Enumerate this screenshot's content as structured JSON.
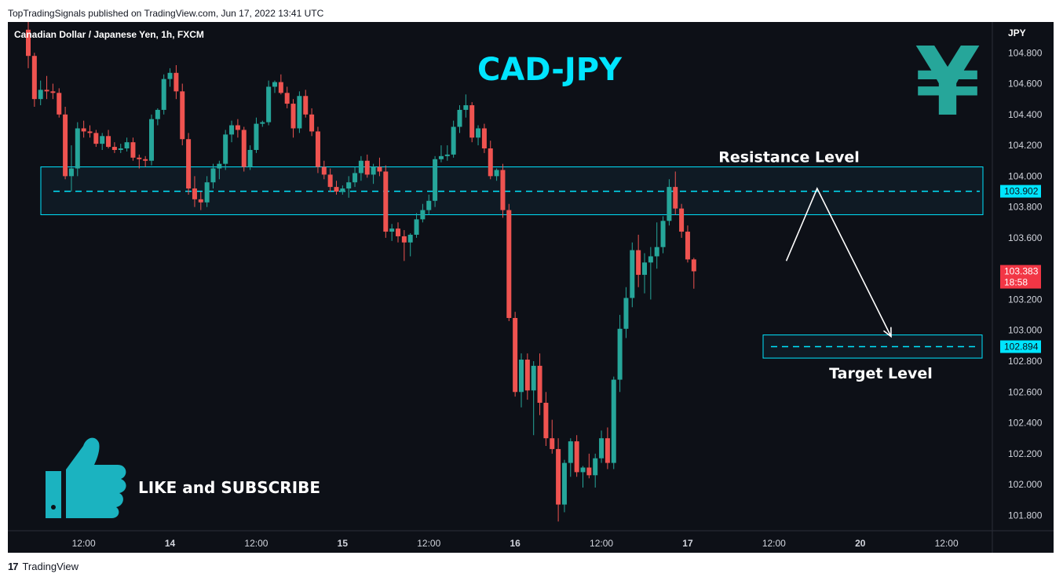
{
  "header": {
    "publish_info": "TopTradingSignals published on TradingView.com, Jun 17, 2022 13:41 UTC"
  },
  "footer": {
    "brand": "TradingView",
    "logo_glyph": "17"
  },
  "chart_data": {
    "type": "candlestick",
    "symbol_label": "Canadian Dollar / Japanese Yen, 1h, FXCM",
    "title": "CAD-JPY",
    "currency_label": "JPY",
    "currency_symbol": "¥",
    "ylim": [
      101.7,
      105.0
    ],
    "y_ticks": [
      "104.800",
      "104.600",
      "104.400",
      "104.200",
      "104.000",
      "103.800",
      "103.600",
      "103.200",
      "103.000",
      "102.800",
      "102.600",
      "102.400",
      "102.200",
      "102.000",
      "101.800"
    ],
    "x_ticks": [
      {
        "label": "12:00",
        "bar": 9
      },
      {
        "label": "14",
        "bar": 23
      },
      {
        "label": "12:00",
        "bar": 37
      },
      {
        "label": "15",
        "bar": 51
      },
      {
        "label": "12:00",
        "bar": 65
      },
      {
        "label": "16",
        "bar": 79
      },
      {
        "label": "12:00",
        "bar": 93
      },
      {
        "label": "17",
        "bar": 107
      },
      {
        "label": "12:00",
        "bar": 121
      },
      {
        "label": "20",
        "bar": 135
      },
      {
        "label": "12:00",
        "bar": 149
      }
    ],
    "resistance": {
      "label": "Resistance Level",
      "top": 104.06,
      "bottom": 103.75,
      "price": 103.902,
      "price_label": "103.902"
    },
    "target": {
      "label": "Target Level",
      "top": 102.97,
      "bottom": 102.82,
      "price": 102.894,
      "price_label": "102.894"
    },
    "last_price": {
      "price": 103.383,
      "label": "103.383",
      "countdown": "18:58"
    },
    "projection": [
      {
        "bar": 123,
        "price": 103.45
      },
      {
        "bar": 128,
        "price": 103.92
      },
      {
        "bar": 140,
        "price": 102.96
      }
    ],
    "colors": {
      "up": "#26a69a",
      "down": "#ef5350",
      "bg": "#0d1017",
      "accent": "#00e5ff",
      "yen": "#26a69a",
      "thumb": "#1bb3c0"
    },
    "candles": [
      [
        104.95,
        105.05,
        104.7,
        104.78
      ],
      [
        104.78,
        104.8,
        104.45,
        104.5
      ],
      [
        104.5,
        104.62,
        104.46,
        104.56
      ],
      [
        104.56,
        104.65,
        104.5,
        104.55
      ],
      [
        104.55,
        104.6,
        104.5,
        104.54
      ],
      [
        104.54,
        104.57,
        104.38,
        104.4
      ],
      [
        104.4,
        104.45,
        103.98,
        104.0
      ],
      [
        104.0,
        104.2,
        103.9,
        104.05
      ],
      [
        104.05,
        104.35,
        104.0,
        104.31
      ],
      [
        104.31,
        104.36,
        104.25,
        104.29
      ],
      [
        104.29,
        104.33,
        104.25,
        104.28
      ],
      [
        104.28,
        104.3,
        104.19,
        104.21
      ],
      [
        104.21,
        104.28,
        104.17,
        104.26
      ],
      [
        104.26,
        104.3,
        104.18,
        104.19
      ],
      [
        104.19,
        104.22,
        104.15,
        104.17
      ],
      [
        104.17,
        104.21,
        104.15,
        104.18
      ],
      [
        104.18,
        104.25,
        104.16,
        104.22
      ],
      [
        104.22,
        104.25,
        104.1,
        104.12
      ],
      [
        104.12,
        104.14,
        104.05,
        104.11
      ],
      [
        104.11,
        104.13,
        104.06,
        104.1
      ],
      [
        104.1,
        104.4,
        104.07,
        104.37
      ],
      [
        104.37,
        104.44,
        104.33,
        104.43
      ],
      [
        104.43,
        104.66,
        104.4,
        104.63
      ],
      [
        104.63,
        104.7,
        104.58,
        104.67
      ],
      [
        104.67,
        104.72,
        104.5,
        104.55
      ],
      [
        104.55,
        104.6,
        104.2,
        104.24
      ],
      [
        104.24,
        104.28,
        103.88,
        103.92
      ],
      [
        103.92,
        104.0,
        103.8,
        103.85
      ],
      [
        103.85,
        103.9,
        103.78,
        103.83
      ],
      [
        103.83,
        104.0,
        103.8,
        103.96
      ],
      [
        103.96,
        104.08,
        103.92,
        104.05
      ],
      [
        104.05,
        104.1,
        103.98,
        104.08
      ],
      [
        104.08,
        104.3,
        104.04,
        104.27
      ],
      [
        104.27,
        104.36,
        104.22,
        104.33
      ],
      [
        104.33,
        104.37,
        104.25,
        104.3
      ],
      [
        104.3,
        104.32,
        104.03,
        104.06
      ],
      [
        104.06,
        104.2,
        104.04,
        104.17
      ],
      [
        104.17,
        104.38,
        104.15,
        104.34
      ],
      [
        104.34,
        104.36,
        104.32,
        104.35
      ],
      [
        104.35,
        104.62,
        104.33,
        104.58
      ],
      [
        104.58,
        104.62,
        104.54,
        104.61
      ],
      [
        104.61,
        104.66,
        104.53,
        104.54
      ],
      [
        104.54,
        104.58,
        104.44,
        104.47
      ],
      [
        104.47,
        104.5,
        104.25,
        104.31
      ],
      [
        104.31,
        104.55,
        104.28,
        104.52
      ],
      [
        104.52,
        104.56,
        104.38,
        104.4
      ],
      [
        104.4,
        104.44,
        104.26,
        104.29
      ],
      [
        104.29,
        104.32,
        104.02,
        104.06
      ],
      [
        104.06,
        104.1,
        103.98,
        104.01
      ],
      [
        104.01,
        104.05,
        103.9,
        103.93
      ],
      [
        103.93,
        103.97,
        103.88,
        103.9
      ],
      [
        103.9,
        103.94,
        103.88,
        103.92
      ],
      [
        103.92,
        104.0,
        103.86,
        103.96
      ],
      [
        103.96,
        104.06,
        103.93,
        104.02
      ],
      [
        104.02,
        104.13,
        103.97,
        104.1
      ],
      [
        104.1,
        104.14,
        103.99,
        104.01
      ],
      [
        104.01,
        104.08,
        103.95,
        104.06
      ],
      [
        104.06,
        104.12,
        104.0,
        104.03
      ],
      [
        104.03,
        104.07,
        103.6,
        103.64
      ],
      [
        103.64,
        103.69,
        103.58,
        103.66
      ],
      [
        103.66,
        103.7,
        103.57,
        103.61
      ],
      [
        103.61,
        103.65,
        103.45,
        103.57
      ],
      [
        103.57,
        103.63,
        103.48,
        103.62
      ],
      [
        103.62,
        103.76,
        103.6,
        103.72
      ],
      [
        103.72,
        103.82,
        103.7,
        103.78
      ],
      [
        103.78,
        103.88,
        103.75,
        103.84
      ],
      [
        103.84,
        104.13,
        103.8,
        104.11
      ],
      [
        104.11,
        104.2,
        104.09,
        104.13
      ],
      [
        104.13,
        104.2,
        104.1,
        104.14
      ],
      [
        104.14,
        104.36,
        104.12,
        104.32
      ],
      [
        104.32,
        104.46,
        104.28,
        104.43
      ],
      [
        104.43,
        104.53,
        104.38,
        104.46
      ],
      [
        104.46,
        104.48,
        104.22,
        104.25
      ],
      [
        104.25,
        104.33,
        104.2,
        104.31
      ],
      [
        104.31,
        104.34,
        104.15,
        104.18
      ],
      [
        104.18,
        104.23,
        103.98,
        104.0
      ],
      [
        104.0,
        104.05,
        103.97,
        104.04
      ],
      [
        104.04,
        104.08,
        103.73,
        103.78
      ],
      [
        103.78,
        103.82,
        103.06,
        103.08
      ],
      [
        103.08,
        103.12,
        102.57,
        102.6
      ],
      [
        102.6,
        102.85,
        102.5,
        102.81
      ],
      [
        102.81,
        102.85,
        102.55,
        102.61
      ],
      [
        102.61,
        102.8,
        102.32,
        102.77
      ],
      [
        102.77,
        102.85,
        102.45,
        102.53
      ],
      [
        102.53,
        102.6,
        102.25,
        102.3
      ],
      [
        102.3,
        102.42,
        102.2,
        102.23
      ],
      [
        102.23,
        102.3,
        101.76,
        101.87
      ],
      [
        101.87,
        102.16,
        101.82,
        102.14
      ],
      [
        102.14,
        102.3,
        102.05,
        102.28
      ],
      [
        102.28,
        102.32,
        102.05,
        102.08
      ],
      [
        102.08,
        102.12,
        101.98,
        102.11
      ],
      [
        102.11,
        102.2,
        102.04,
        102.06
      ],
      [
        102.06,
        102.2,
        101.98,
        102.17
      ],
      [
        102.17,
        102.35,
        102.14,
        102.3
      ],
      [
        102.3,
        102.37,
        102.1,
        102.14
      ],
      [
        102.14,
        102.7,
        102.1,
        102.68
      ],
      [
        102.68,
        103.1,
        102.6,
        103.01
      ],
      [
        103.01,
        103.28,
        102.95,
        103.21
      ],
      [
        103.21,
        103.57,
        103.15,
        103.52
      ],
      [
        103.52,
        103.62,
        103.28,
        103.36
      ],
      [
        103.36,
        103.5,
        103.24,
        103.44
      ],
      [
        103.44,
        103.54,
        103.2,
        103.48
      ],
      [
        103.48,
        103.7,
        103.4,
        103.54
      ],
      [
        103.54,
        103.74,
        103.5,
        103.71
      ],
      [
        103.71,
        103.98,
        103.68,
        103.93
      ],
      [
        103.93,
        104.03,
        103.75,
        103.79
      ],
      [
        103.79,
        103.82,
        103.6,
        103.64
      ],
      [
        103.64,
        103.68,
        103.44,
        103.46
      ],
      [
        103.46,
        103.47,
        103.27,
        103.383
      ]
    ]
  },
  "overlay": {
    "like_text": "LIKE and SUBSCRIBE"
  }
}
